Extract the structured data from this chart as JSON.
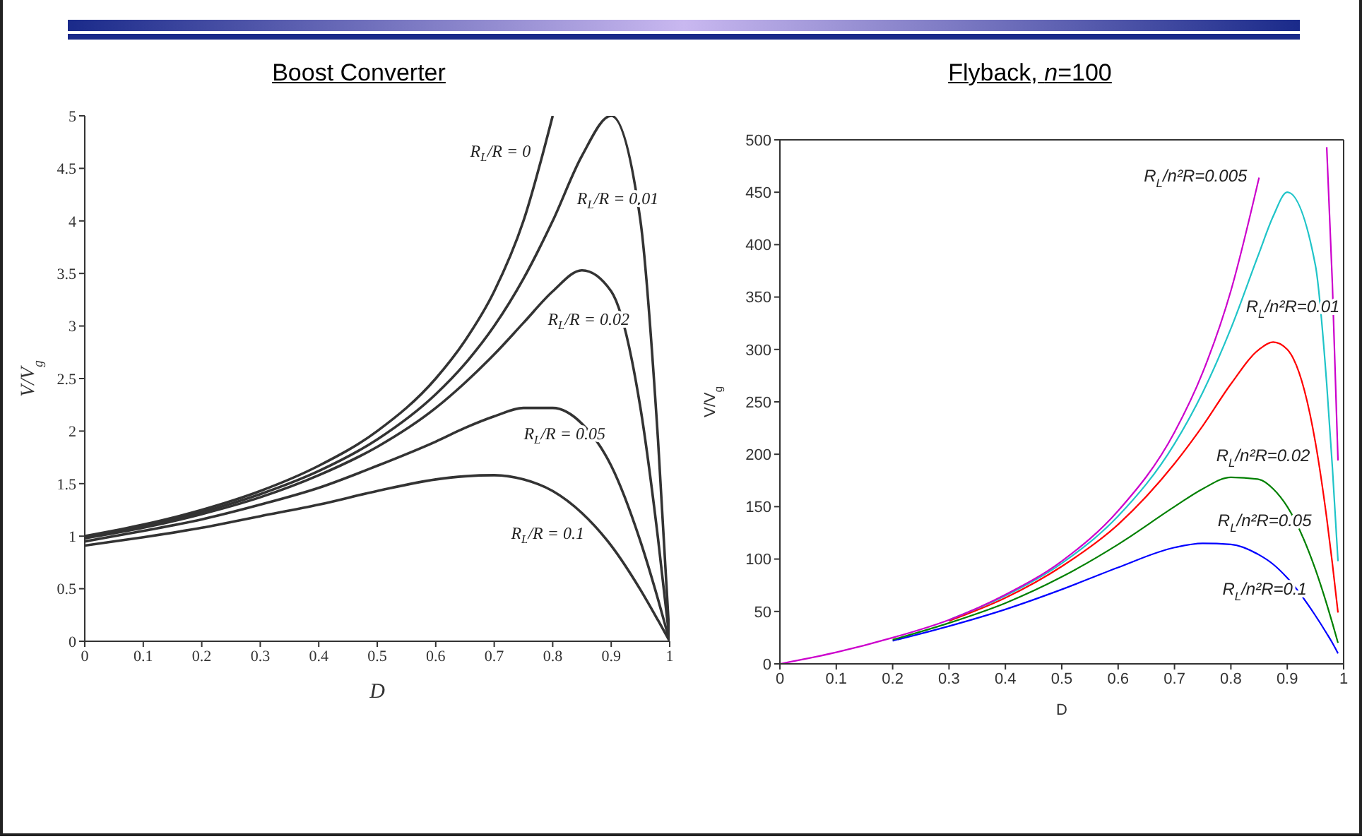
{
  "chart_data": [
    {
      "type": "line",
      "title": "Boost Converter",
      "xlabel": "D",
      "ylabel": "V/V$_{g}$",
      "x": [
        0,
        0.1,
        0.2,
        0.3,
        0.4,
        0.5,
        0.6,
        0.65,
        0.7,
        0.75,
        0.8,
        0.85,
        0.9,
        0.95,
        0.98,
        1
      ],
      "series": [
        {
          "name": "R$_{L}$/R = 0",
          "color": "#333333",
          "values": [
            1,
            1.11,
            1.25,
            1.43,
            1.67,
            2,
            2.5,
            2.86,
            3.33,
            4,
            5,
            null,
            null,
            null,
            null,
            null
          ]
        },
        {
          "name": "R$_{L}$/R = 0.01",
          "color": "#333333",
          "values": [
            0.99,
            1.1,
            1.23,
            1.4,
            1.62,
            1.92,
            2.35,
            2.64,
            3,
            3.45,
            4,
            4.62,
            5,
            4,
            1.92,
            0
          ]
        },
        {
          "name": "R$_{L}$/R = 0.02",
          "color": "#333333",
          "values": [
            0.98,
            1.08,
            1.21,
            1.37,
            1.58,
            1.85,
            2.22,
            2.46,
            2.73,
            3.03,
            3.33,
            3.53,
            3.33,
            2.22,
            0.98,
            0
          ]
        },
        {
          "name": "R$_{L}$/R = 0.05",
          "color": "#333333",
          "values": [
            0.95,
            1.05,
            1.16,
            1.3,
            1.46,
            1.67,
            1.9,
            2.03,
            2.14,
            2.22,
            2.22,
            2.07,
            1.67,
            0.95,
            0.4,
            0
          ]
        },
        {
          "name": "R$_{L}$/R = 0.1",
          "color": "#333333",
          "values": [
            0.91,
            0.99,
            1.08,
            1.19,
            1.3,
            1.43,
            1.54,
            1.57,
            1.58,
            1.54,
            1.43,
            1.22,
            0.91,
            0.49,
            0.2,
            0
          ]
        }
      ],
      "xlim": [
        0,
        1
      ],
      "xticks": [
        0,
        0.1,
        0.2,
        0.3,
        0.4,
        0.5,
        0.6,
        0.7,
        0.8,
        0.9,
        1
      ],
      "ylim": [
        0,
        5
      ],
      "yticks": [
        0,
        0.5,
        1,
        1.5,
        2,
        2.5,
        3,
        3.5,
        4,
        4.5,
        5
      ],
      "grid": false,
      "legend": false,
      "marker": "none",
      "line_style": "solid"
    },
    {
      "type": "line",
      "title": "Flyback, n=100",
      "xlabel": "D",
      "ylabel": "V/V$_{g}$",
      "x": [
        0,
        0.1,
        0.2,
        0.3,
        0.4,
        0.5,
        0.6,
        0.7,
        0.75,
        0.8,
        0.85,
        0.875,
        0.9,
        0.95,
        0.97,
        0.98,
        0.99
      ],
      "series": [
        {
          "name": "R$_{L}$/n²R=0.005",
          "color": "#cc00cc",
          "values": [
            0,
            11,
            25,
            42,
            66,
            98,
            146,
            221,
            278,
            356,
            464,
            null,
            null,
            null,
            493,
            363,
            194
          ]
        },
        {
          "name": "R$_{L}$/n²R=0.01",
          "color": "#1fc4c8",
          "values": [
            null,
            null,
            null,
            42,
            65,
            96,
            141,
            210,
            259,
            320,
            392,
            427,
            450,
            380,
            267,
            188,
            98
          ]
        },
        {
          "name": "R$_{L}$/n²R=0.02",
          "color": "#ff0000",
          "values": [
            null,
            null,
            null,
            41,
            63,
            93,
            133,
            191,
            227,
            267,
            300,
            307,
            300,
            211,
            139,
            96,
            49
          ]
        },
        {
          "name": "R$_{L}$/n²R=0.05",
          "color": "#008000",
          "values": [
            null,
            null,
            23,
            39,
            58,
            83,
            114,
            150,
            167,
            178,
            176,
            167,
            150,
            90,
            57,
            39,
            20
          ]
        },
        {
          "name": "R$_{L}$/n²R=0.1",
          "color": "#0000ff",
          "values": [
            null,
            null,
            22,
            36,
            52,
            71,
            92,
            111,
            115,
            114,
            104,
            95,
            82,
            46,
            29,
            20,
            10
          ]
        }
      ],
      "xlim": [
        0,
        1
      ],
      "xticks": [
        0,
        0.1,
        0.2,
        0.3,
        0.4,
        0.5,
        0.6,
        0.7,
        0.8,
        0.9,
        1
      ],
      "ylim": [
        0,
        500
      ],
      "yticks": [
        0,
        50,
        100,
        150,
        200,
        250,
        300,
        350,
        400,
        450,
        500
      ],
      "grid": false,
      "legend": false,
      "marker": "none",
      "line_style": "solid"
    }
  ]
}
